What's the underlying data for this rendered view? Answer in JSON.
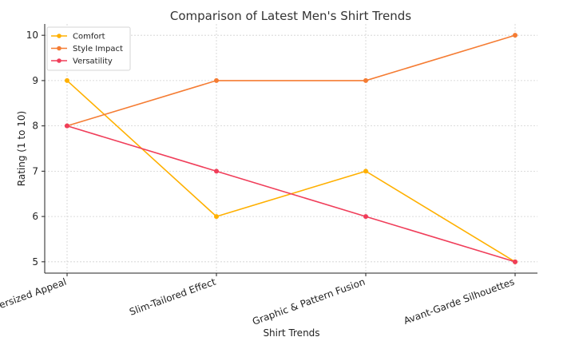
{
  "chart_data": {
    "type": "line",
    "title": "Comparison of Latest Men's Shirt Trends",
    "xlabel": "Shirt Trends",
    "ylabel": "Rating (1 to 10)",
    "categories": [
      "Oversized Appeal",
      "Slim-Tailored Effect",
      "Graphic & Pattern Fusion",
      "Avant-Garde Silhouettes"
    ],
    "ylim": [
      4.75,
      10.25
    ],
    "yticks": [
      5,
      6,
      7,
      8,
      9,
      10
    ],
    "grid": true,
    "legend_position": "top-left",
    "series": [
      {
        "name": "Comfort",
        "color": "#ffb000",
        "values": [
          9,
          6,
          7,
          5
        ]
      },
      {
        "name": "Style Impact",
        "color": "#f57c33",
        "values": [
          8,
          9,
          9,
          10
        ]
      },
      {
        "name": "Versatility",
        "color": "#f03e5a",
        "values": [
          8,
          7,
          6,
          5
        ]
      }
    ]
  }
}
